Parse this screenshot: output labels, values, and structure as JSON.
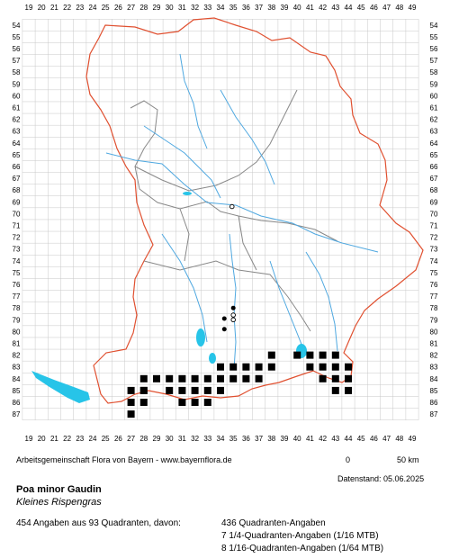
{
  "map": {
    "x_ticks": [
      "19",
      "20",
      "21",
      "22",
      "23",
      "24",
      "25",
      "26",
      "27",
      "28",
      "29",
      "30",
      "31",
      "32",
      "33",
      "34",
      "35",
      "36",
      "37",
      "38",
      "39",
      "40",
      "41",
      "42",
      "43",
      "44",
      "45",
      "46",
      "47",
      "48",
      "49"
    ],
    "y_ticks": [
      "54",
      "55",
      "56",
      "57",
      "58",
      "59",
      "60",
      "61",
      "62",
      "63",
      "64",
      "65",
      "66",
      "67",
      "68",
      "69",
      "70",
      "71",
      "72",
      "73",
      "74",
      "75",
      "76",
      "77",
      "78",
      "79",
      "80",
      "81",
      "82",
      "83",
      "84",
      "85",
      "86",
      "87"
    ],
    "colors": {
      "grid": "#c8c8c8",
      "border": "#e05030",
      "admin": "#888888",
      "river": "#4fa8e0",
      "lake": "#27c4e8",
      "quadrant": "#000000"
    },
    "occurrence_cells": [
      [
        27,
        85
      ],
      [
        28,
        85
      ],
      [
        27,
        86
      ],
      [
        28,
        86
      ],
      [
        27,
        87
      ],
      [
        28,
        84
      ],
      [
        28,
        85
      ],
      [
        29,
        84
      ],
      [
        31,
        84
      ],
      [
        32,
        84
      ],
      [
        33,
        84
      ],
      [
        34,
        84
      ],
      [
        35,
        84
      ],
      [
        30,
        84
      ],
      [
        30,
        85
      ],
      [
        31,
        85
      ],
      [
        32,
        85
      ],
      [
        33,
        85
      ],
      [
        34,
        85
      ],
      [
        31,
        86
      ],
      [
        32,
        86
      ],
      [
        33,
        86
      ],
      [
        34,
        83
      ],
      [
        35,
        83
      ],
      [
        36,
        83
      ],
      [
        37,
        83
      ],
      [
        38,
        83
      ],
      [
        37,
        84
      ],
      [
        36,
        84
      ],
      [
        38,
        82
      ],
      [
        40,
        82
      ],
      [
        41,
        82
      ],
      [
        42,
        82
      ],
      [
        43,
        82
      ],
      [
        41,
        83
      ],
      [
        42,
        83
      ],
      [
        43,
        83
      ],
      [
        44,
        83
      ],
      [
        43,
        84
      ],
      [
        44,
        84
      ],
      [
        43,
        85
      ],
      [
        44,
        85
      ],
      [
        42,
        84
      ]
    ],
    "filled_dots": [
      [
        34.3,
        78.9
      ],
      [
        34.3,
        79.8
      ],
      [
        35.0,
        78.0
      ]
    ],
    "open_dots": [
      [
        34.9,
        69.4
      ],
      [
        35.0,
        78.6
      ],
      [
        35.0,
        79.0
      ]
    ]
  },
  "credits": "Arbeitsgemeinschaft Flora von Bayern - www.bayernflora.de",
  "scale": {
    "zero": "0",
    "label": "50 km"
  },
  "date": "Datenstand: 05.06.2025",
  "species": {
    "name": "Poa minor Gaudin",
    "common": "Kleines Rispengras"
  },
  "stats": {
    "summary": "454 Angaben aus 93 Quadranten, davon:",
    "line1": "436 Quadranten-Angaben",
    "line2": "7 1/4-Quadranten-Angaben (1/16 MTB)",
    "line3": "8 1/16-Quadranten-Angaben (1/64 MTB)"
  }
}
